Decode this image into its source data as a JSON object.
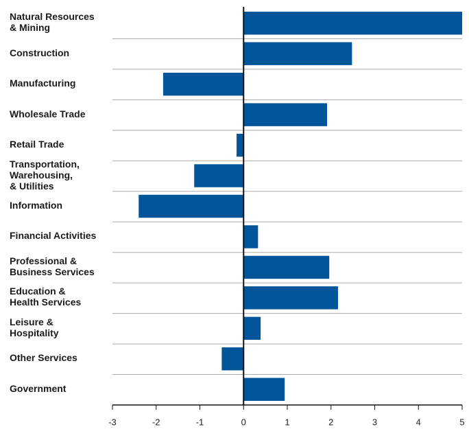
{
  "chart_data": {
    "type": "bar",
    "orientation": "horizontal",
    "categories": [
      "Natural Resources\n& Mining",
      "Construction",
      "Manufacturing",
      "Wholesale Trade",
      "Retail Trade",
      "Transportation,\nWarehousing,\n& Utilities",
      "Information",
      "Financial Activities",
      "Professional &\nBusiness Services",
      "Education &\nHealth Services",
      "Leisure &\nHospitality",
      "Other Services",
      "Government"
    ],
    "values": [
      5.0,
      2.48,
      -1.84,
      1.91,
      -0.16,
      -1.13,
      -2.4,
      0.33,
      1.96,
      2.16,
      0.39,
      -0.5,
      0.94
    ],
    "color": "#03559a",
    "xlim": [
      -3,
      5
    ],
    "xticks": [
      -3,
      -2,
      -1,
      0,
      1,
      2,
      3,
      4,
      5
    ]
  }
}
